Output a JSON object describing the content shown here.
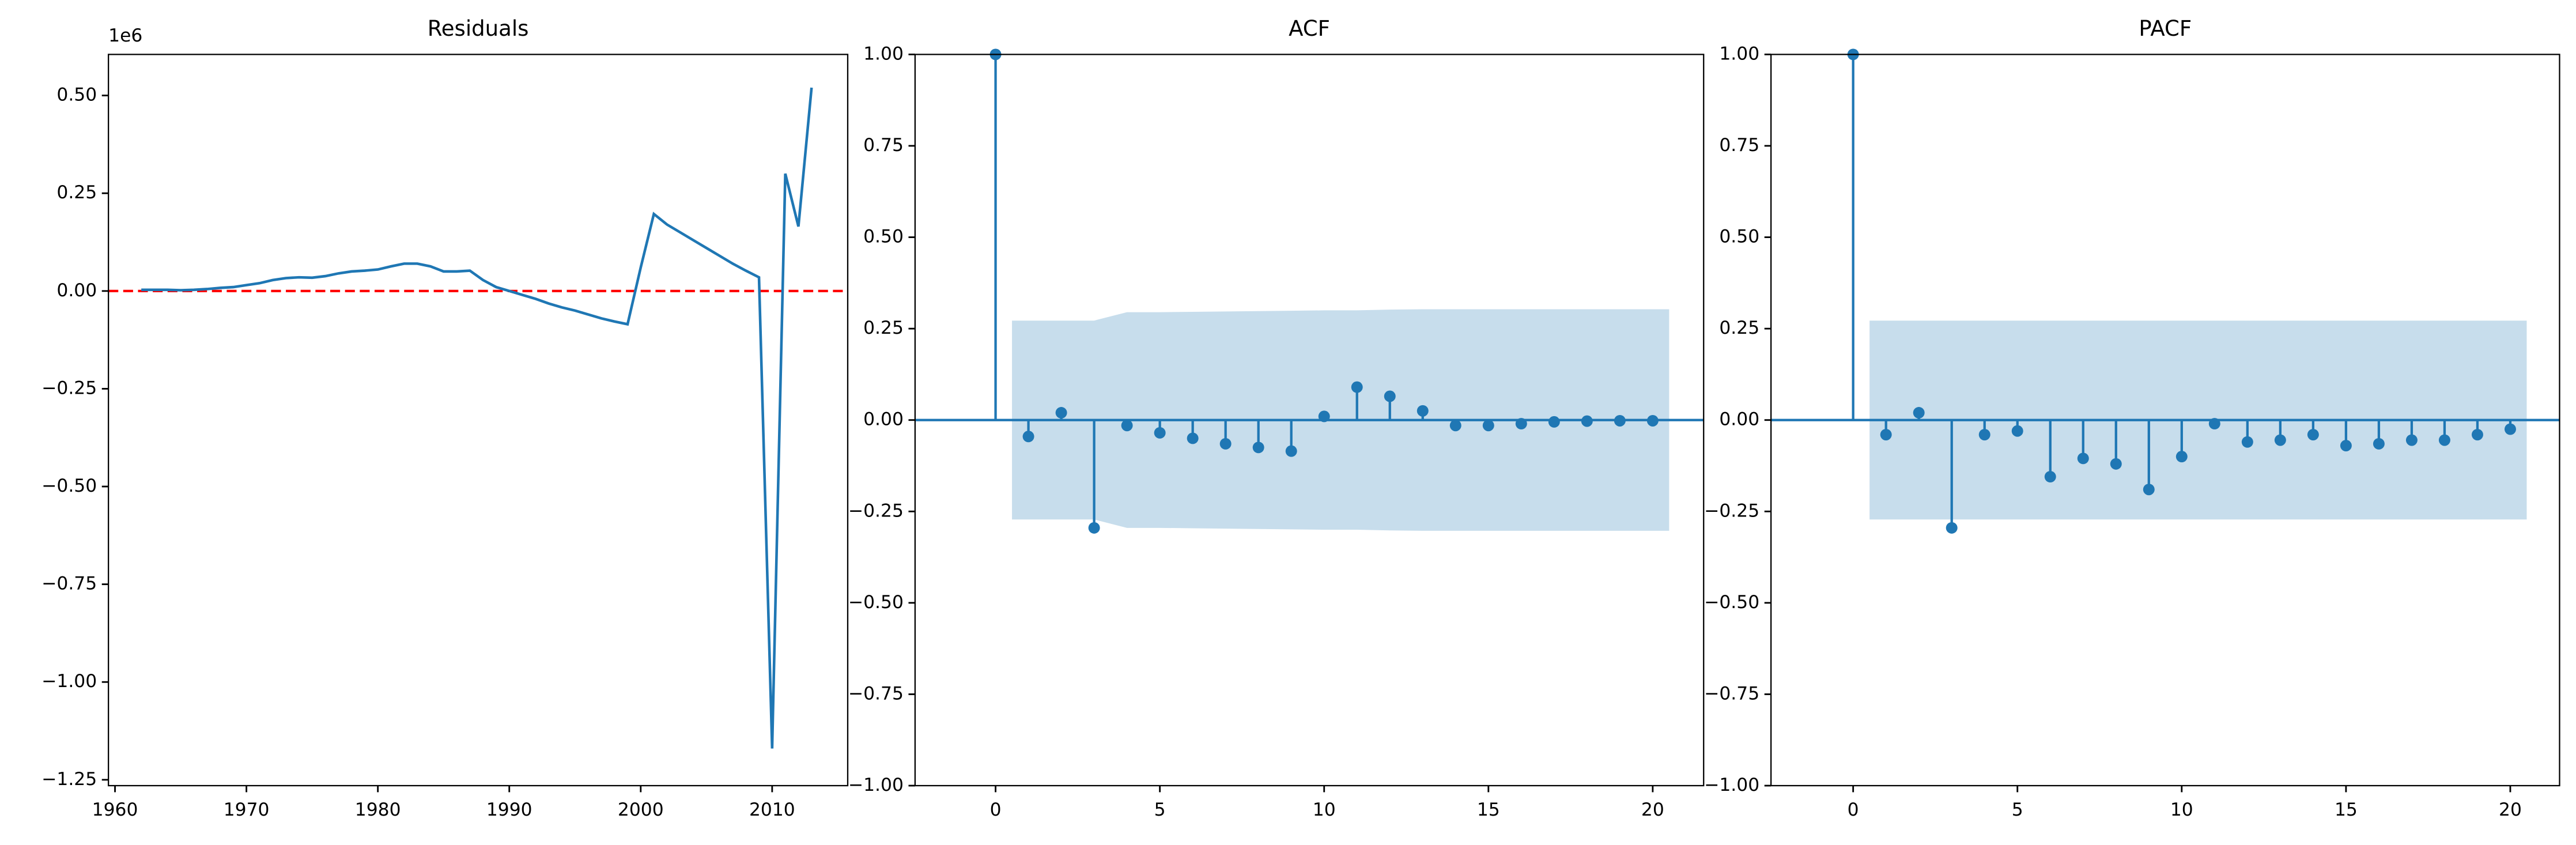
{
  "chart_data": [
    {
      "type": "line",
      "title": "Residuals",
      "offset_label": "1e6",
      "color": "#1f77b4",
      "x": [
        1962,
        1963,
        1964,
        1965,
        1966,
        1967,
        1968,
        1969,
        1970,
        1971,
        1972,
        1973,
        1974,
        1975,
        1976,
        1977,
        1978,
        1979,
        1980,
        1981,
        1982,
        1983,
        1984,
        1985,
        1986,
        1987,
        1988,
        1989,
        1990,
        1991,
        1992,
        1993,
        1994,
        1995,
        1996,
        1997,
        1998,
        1999,
        2000,
        2001,
        2002,
        2003,
        2004,
        2005,
        2006,
        2007,
        2008,
        2009,
        2010,
        2011,
        2012,
        2013
      ],
      "values": [
        0.003,
        0.003,
        0.003,
        0.002,
        0.003,
        0.005,
        0.008,
        0.01,
        0.015,
        0.02,
        0.028,
        0.033,
        0.035,
        0.034,
        0.038,
        0.045,
        0.05,
        0.052,
        0.055,
        0.063,
        0.07,
        0.07,
        0.063,
        0.05,
        0.05,
        0.052,
        0.028,
        0.01,
        0.0,
        -0.01,
        -0.02,
        -0.032,
        -0.042,
        -0.05,
        -0.06,
        -0.07,
        -0.078,
        -0.085,
        0.06,
        0.197,
        0.17,
        0.15,
        0.13,
        0.11,
        0.09,
        0.07,
        0.052,
        0.035,
        -1.17,
        0.3,
        0.165,
        0.52
      ],
      "hline": {
        "value": 0,
        "color": "#ff0000"
      },
      "xlim": [
        1959.5,
        2015.75
      ],
      "ylim": [
        -1.265,
        0.605
      ],
      "xticks": [
        1960,
        1970,
        1980,
        1990,
        2000,
        2010
      ],
      "yticks": [
        {
          "value": -1.25,
          "label": "−1.25"
        },
        {
          "value": -1.0,
          "label": "−1.00"
        },
        {
          "value": -0.75,
          "label": "−0.75"
        },
        {
          "value": -0.5,
          "label": "−0.50"
        },
        {
          "value": -0.25,
          "label": "−0.25"
        },
        {
          "value": 0,
          "label": "0.00"
        },
        {
          "value": 0.25,
          "label": "0.25"
        },
        {
          "value": 0.5,
          "label": "0.50"
        }
      ]
    },
    {
      "type": "stem",
      "title": "ACF",
      "color": "#1f77b4",
      "x": [
        0,
        1,
        2,
        3,
        4,
        5,
        6,
        7,
        8,
        9,
        10,
        11,
        12,
        13,
        14,
        15,
        16,
        17,
        18,
        19,
        20
      ],
      "values": [
        1,
        -0.045,
        0.02,
        -0.295,
        -0.015,
        -0.035,
        -0.05,
        -0.065,
        -0.075,
        -0.085,
        0.01,
        0.09,
        0.065,
        0.025,
        -0.015,
        -0.015,
        -0.01,
        -0.005,
        -0.003,
        -0.002,
        -0.002
      ],
      "band": [
        0.272,
        0.272,
        0.272,
        0.295,
        0.295,
        0.296,
        0.297,
        0.298,
        0.299,
        0.3,
        0.3,
        0.302,
        0.303,
        0.303,
        0.303,
        0.303,
        0.303,
        0.303,
        0.303,
        0.303
      ],
      "xlim": [
        -2.45,
        21.55
      ],
      "ylim": [
        -1,
        1
      ],
      "xticks": [
        0,
        5,
        10,
        15,
        20
      ],
      "yticks": [
        {
          "value": -1,
          "label": "−1.00"
        },
        {
          "value": -0.75,
          "label": "−0.75"
        },
        {
          "value": -0.5,
          "label": "−0.50"
        },
        {
          "value": -0.25,
          "label": "−0.25"
        },
        {
          "value": 0,
          "label": "0.00"
        },
        {
          "value": 0.25,
          "label": "0.25"
        },
        {
          "value": 0.5,
          "label": "0.50"
        },
        {
          "value": 0.75,
          "label": "0.75"
        },
        {
          "value": 1,
          "label": "1.00"
        }
      ]
    },
    {
      "type": "stem",
      "title": "PACF",
      "color": "#1f77b4",
      "x": [
        0,
        1,
        2,
        3,
        4,
        5,
        6,
        7,
        8,
        9,
        10,
        11,
        12,
        13,
        14,
        15,
        16,
        17,
        18,
        19,
        20
      ],
      "values": [
        1,
        -0.04,
        0.02,
        -0.295,
        -0.04,
        -0.03,
        -0.155,
        -0.105,
        -0.12,
        -0.19,
        -0.1,
        -0.01,
        -0.06,
        -0.055,
        -0.04,
        -0.07,
        -0.065,
        -0.055,
        -0.055,
        -0.04,
        -0.025
      ],
      "band": [
        0.272,
        0.272,
        0.272,
        0.272,
        0.272,
        0.272,
        0.272,
        0.272,
        0.272,
        0.272,
        0.272,
        0.272,
        0.272,
        0.272,
        0.272,
        0.272,
        0.272,
        0.272,
        0.272,
        0.272
      ],
      "xlim": [
        -2.5,
        21.5
      ],
      "ylim": [
        -1,
        1
      ],
      "xticks": [
        0,
        5,
        10,
        15,
        20
      ],
      "yticks": [
        {
          "value": -1,
          "label": "−1.00"
        },
        {
          "value": -0.75,
          "label": "−0.75"
        },
        {
          "value": -0.5,
          "label": "−0.50"
        },
        {
          "value": -0.25,
          "label": "−0.25"
        },
        {
          "value": 0,
          "label": "0.00"
        },
        {
          "value": 0.25,
          "label": "0.25"
        },
        {
          "value": 0.5,
          "label": "0.50"
        },
        {
          "value": 0.75,
          "label": "0.75"
        },
        {
          "value": 1,
          "label": "1.00"
        }
      ]
    }
  ]
}
